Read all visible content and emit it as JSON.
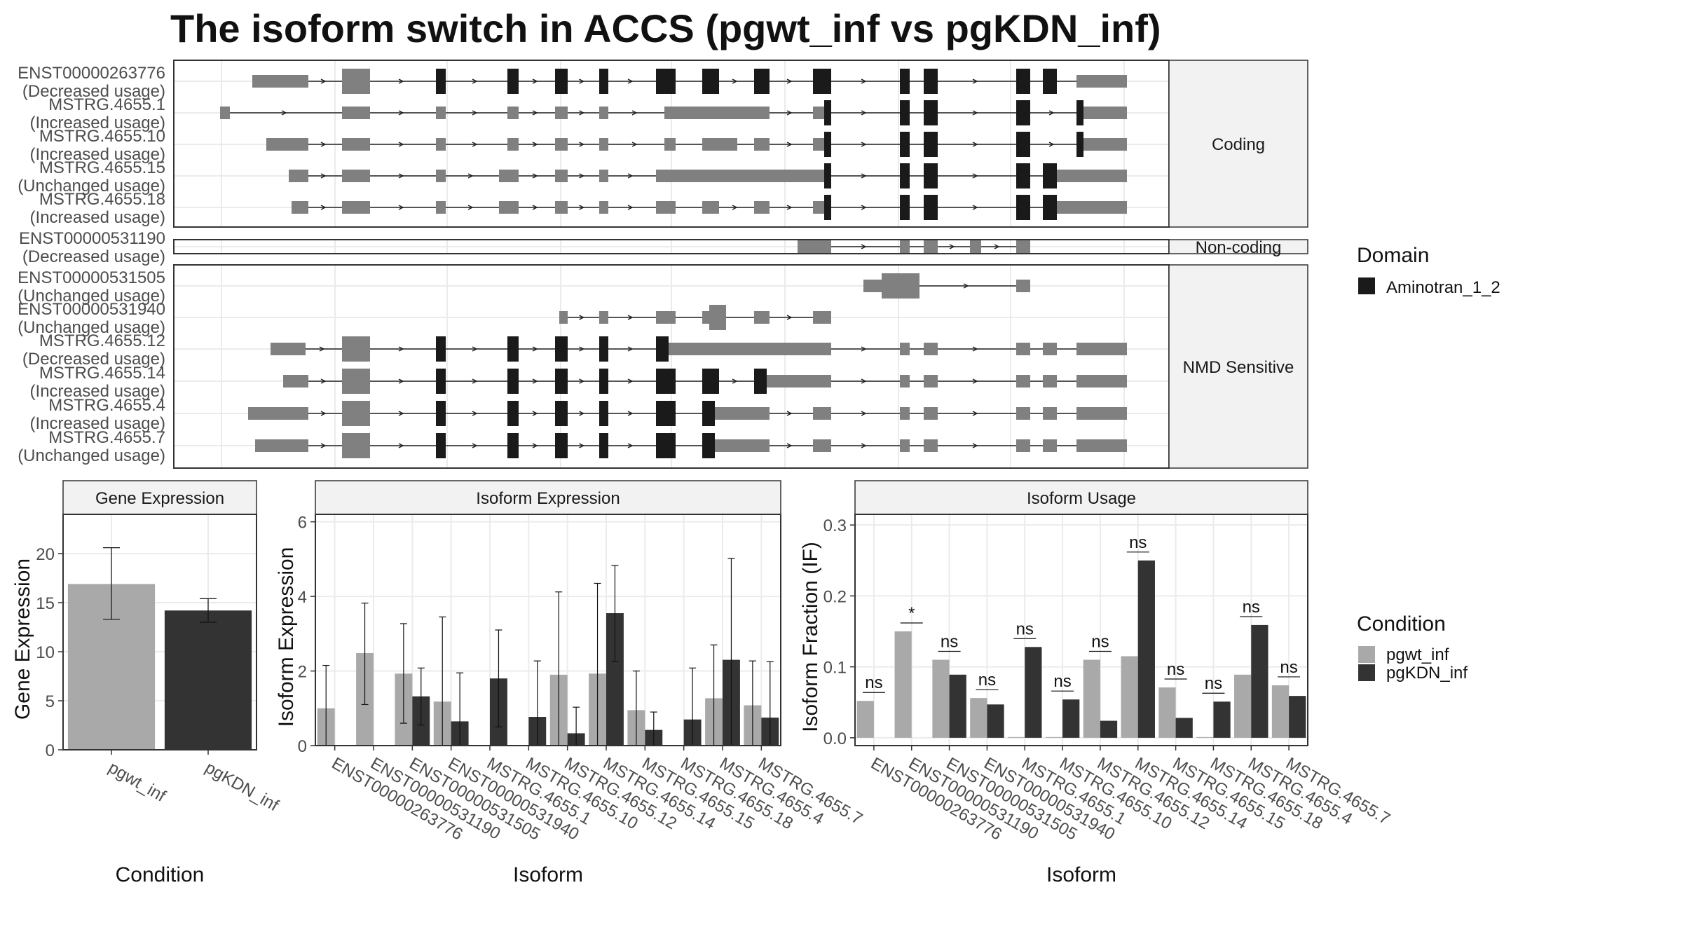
{
  "title": "The isoform switch in ACCS (pgwt_inf vs pgKDN_inf)",
  "colors": {
    "pgwt_inf": "#a9a9a9",
    "pgKDN_inf": "#333333",
    "exon": "#808080",
    "domain": "#1a1a1a",
    "strip": "#f2f2f2",
    "grid": "#ebebeb"
  },
  "structure": {
    "facets": [
      {
        "label": "Coding",
        "isoforms": [
          {
            "name": "ENST00000263776",
            "usage": "(Decreased usage)"
          },
          {
            "name": "MSTRG.4655.1",
            "usage": "(Increased usage)"
          },
          {
            "name": "MSTRG.4655.10",
            "usage": "(Increased usage)"
          },
          {
            "name": "MSTRG.4655.15",
            "usage": "(Unchanged usage)"
          },
          {
            "name": "MSTRG.4655.18",
            "usage": "(Increased usage)"
          }
        ]
      },
      {
        "label": "Non-coding",
        "isoforms": [
          {
            "name": "ENST00000531190",
            "usage": "(Decreased usage)"
          }
        ]
      },
      {
        "label": "NMD Sensitive",
        "isoforms": [
          {
            "name": "ENST00000531505",
            "usage": "(Unchanged usage)"
          },
          {
            "name": "ENST00000531940",
            "usage": "(Unchanged usage)"
          },
          {
            "name": "MSTRG.4655.12",
            "usage": "(Decreased usage)"
          },
          {
            "name": "MSTRG.4655.14",
            "usage": "(Increased usage)"
          },
          {
            "name": "MSTRG.4655.4",
            "usage": "(Increased usage)"
          },
          {
            "name": "MSTRG.4655.7",
            "usage": "(Unchanged usage)"
          }
        ]
      }
    ]
  },
  "legend_domain": {
    "title": "Domain",
    "items": [
      {
        "label": "Aminotran_1_2",
        "color": "#1a1a1a"
      }
    ]
  },
  "legend_condition": {
    "title": "Condition",
    "items": [
      {
        "label": "pgwt_inf",
        "color": "#a9a9a9"
      },
      {
        "label": "pgKDN_inf",
        "color": "#333333"
      }
    ]
  },
  "chart_data": [
    {
      "type": "bar",
      "title": "Gene Expression",
      "xlabel": "Condition",
      "ylabel": "Gene Expression",
      "categories": [
        "pgwt_inf",
        "pgKDN_inf"
      ],
      "values": [
        16.9,
        14.2
      ],
      "error_low": [
        13.3,
        13.0
      ],
      "error_high": [
        20.6,
        15.4
      ],
      "ylim": [
        0,
        24
      ],
      "yticks": [
        0,
        5,
        10,
        15,
        20
      ],
      "grid": true
    },
    {
      "type": "bar",
      "title": "Isoform Expression",
      "xlabel": "Isoform",
      "ylabel": "Isoform Expression",
      "categories": [
        "ENST00000263776",
        "ENST00000531190",
        "ENST00000531505",
        "ENST00000531940",
        "MSTRG.4655.1",
        "MSTRG.4655.10",
        "MSTRG.4655.12",
        "MSTRG.4655.14",
        "MSTRG.4655.15",
        "MSTRG.4655.18",
        "MSTRG.4655.4",
        "MSTRG.4655.7"
      ],
      "series": [
        {
          "name": "pgwt_inf",
          "values": [
            1.0,
            2.48,
            1.93,
            1.18,
            0,
            0,
            1.9,
            1.93,
            0.95,
            0,
            1.27,
            1.08
          ],
          "error_low": [
            0,
            1.1,
            0.6,
            0,
            0,
            0,
            0,
            0,
            0,
            0,
            0,
            0
          ],
          "error_high": [
            2.15,
            3.82,
            3.27,
            3.45,
            0,
            0,
            4.12,
            4.35,
            2.0,
            0,
            2.7,
            2.27
          ]
        },
        {
          "name": "pgKDN_inf",
          "values": [
            0,
            0,
            1.32,
            0.65,
            1.8,
            0.77,
            0.33,
            3.55,
            0.42,
            0.7,
            2.3,
            0.75
          ],
          "error_low": [
            0,
            0,
            0.55,
            0,
            0.5,
            0,
            0,
            2.25,
            0,
            0,
            0,
            0
          ],
          "error_high": [
            0,
            0,
            2.08,
            1.95,
            3.1,
            2.27,
            1.03,
            4.83,
            0.9,
            2.08,
            5.02,
            2.25
          ]
        }
      ],
      "ylim": [
        0,
        6.2
      ],
      "yticks": [
        0,
        2,
        4,
        6
      ],
      "grid": true
    },
    {
      "type": "bar",
      "title": "Isoform Usage",
      "xlabel": "Isoform",
      "ylabel": "Isoform Fraction (IF)",
      "categories": [
        "ENST00000263776",
        "ENST00000531190",
        "ENST00000531505",
        "ENST00000531940",
        "MSTRG.4655.1",
        "MSTRG.4655.10",
        "MSTRG.4655.12",
        "MSTRG.4655.14",
        "MSTRG.4655.15",
        "MSTRG.4655.18",
        "MSTRG.4655.4",
        "MSTRG.4655.7"
      ],
      "series": [
        {
          "name": "pgwt_inf",
          "values": [
            0.052,
            0.15,
            0.11,
            0.056,
            0.001,
            0.001,
            0.11,
            0.115,
            0.071,
            0.001,
            0.089,
            0.074
          ]
        },
        {
          "name": "pgKDN_inf",
          "values": [
            0.0,
            0.0,
            0.089,
            0.047,
            0.128,
            0.054,
            0.024,
            0.25,
            0.028,
            0.051,
            0.159,
            0.059
          ]
        }
      ],
      "significance": [
        "ns",
        "*",
        "ns",
        "ns",
        "ns",
        "ns",
        "ns",
        "ns",
        "ns",
        "ns",
        "ns",
        "ns"
      ],
      "ylim": [
        -0.011,
        0.315
      ],
      "yticks": [
        0.0,
        0.1,
        0.2,
        0.3
      ],
      "ytick_labels": [
        "0.0",
        "0.1",
        "0.2",
        "0.3"
      ],
      "grid": true
    }
  ]
}
